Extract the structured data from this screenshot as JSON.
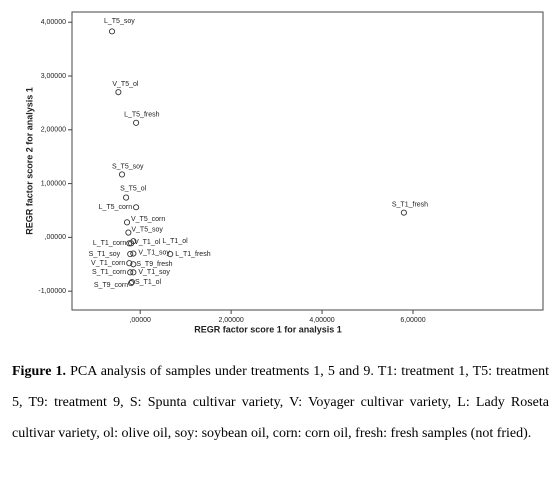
{
  "chart_data": {
    "type": "scatter",
    "x_label": "REGR factor score   1 for analysis 1",
    "y_label": "REGR factor score   2 for analysis 1",
    "xlim": [
      -1.5,
      8.86
    ],
    "ylim": [
      -1.35,
      4.19
    ],
    "xticks": [
      {
        "value": 0,
        "label": ",00000"
      },
      {
        "value": 2,
        "label": "2,00000"
      },
      {
        "value": 4,
        "label": "4,00000"
      },
      {
        "value": 6,
        "label": "6,00000"
      }
    ],
    "yticks": [
      {
        "value": -1,
        "label": "-1,00000"
      },
      {
        "value": 0,
        "label": ",00000"
      },
      {
        "value": 1,
        "label": "1,00000"
      },
      {
        "value": 2,
        "label": "2,00000"
      },
      {
        "value": 3,
        "label": "3,00000"
      },
      {
        "value": 4,
        "label": "4,00000"
      }
    ],
    "color": "#333333",
    "point_labels": [
      "L_T5_soy",
      "V_T5_ol",
      "L_T5_fresh",
      "S_T5_soy",
      "S_T5_ol",
      "L_T5_corn",
      "V_T5_corn",
      "V_T5_soy",
      "S_T1_fresh",
      "L_T1_corn",
      "V_T1_ol",
      "L_T1_ol",
      "S_T1_soy",
      "V_T1_soy",
      "L_T1_fresh",
      "V_T1_corn",
      "S_T9_fresh",
      "S_T1_corn",
      "V_T1_soy",
      "S_T9_corn",
      "S_T1_ol"
    ],
    "x": [
      -0.62,
      -0.48,
      -0.09,
      -0.4,
      -0.31,
      -0.09,
      -0.29,
      -0.26,
      5.8,
      -0.24,
      -0.2,
      -0.15,
      -0.22,
      -0.15,
      0.66,
      -0.24,
      -0.15,
      -0.22,
      -0.15,
      -0.2,
      -0.18
    ],
    "values": [
      3.83,
      2.7,
      2.13,
      1.17,
      0.74,
      0.56,
      0.28,
      0.09,
      0.46,
      -0.11,
      -0.11,
      -0.07,
      -0.31,
      -0.3,
      -0.31,
      -0.48,
      -0.5,
      -0.65,
      -0.65,
      -0.85,
      -0.83
    ]
  },
  "caption": {
    "label": "Figure 1.",
    "text": "PCA analysis of samples under treatments 1, 5 and 9. T1: treatment 1, T5: treatment 5, T9: treatment 9, S: Spunta cultivar variety, V: Voyager cultivar variety, L: Lady Roseta cultivar variety, ol: olive oil, soy: soybean oil, corn: corn oil, fresh: fresh samples (not fried)."
  }
}
